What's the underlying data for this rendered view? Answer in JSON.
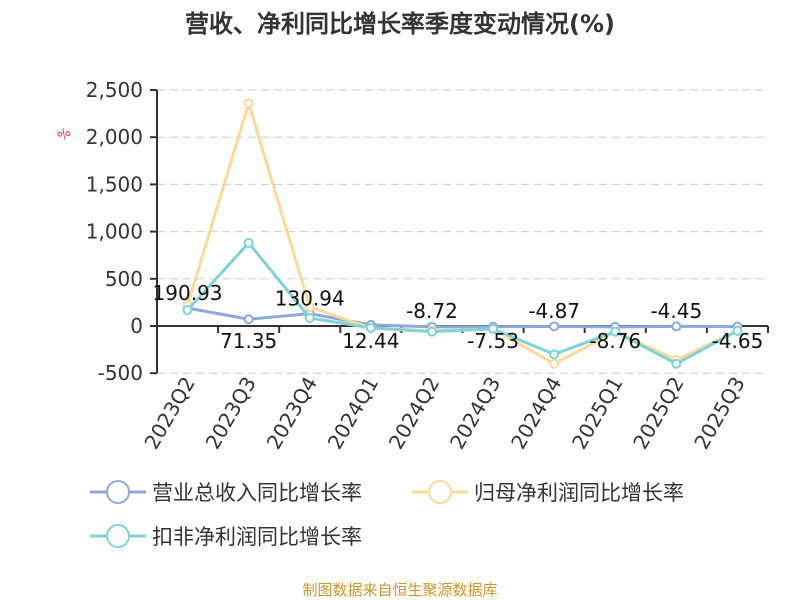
{
  "chart_data": {
    "type": "line",
    "title": "营收、净利同比增长率季度变动情况(%)",
    "categories": [
      "2023Q2",
      "2023Q3",
      "2023Q4",
      "2024Q1",
      "2024Q2",
      "2024Q3",
      "2024Q4",
      "2025Q1",
      "2025Q2",
      "2025Q3"
    ],
    "ylim": [
      -500,
      2500
    ],
    "yticks": [
      -500,
      0,
      500,
      1000,
      1500,
      2000,
      2500
    ],
    "ytick_labels": [
      "-500",
      "0",
      "500",
      "1,000",
      "1,500",
      "2,000",
      "2,500"
    ],
    "grid": true,
    "legend_placement": "bottom",
    "series": [
      {
        "name": "营业总收入同比增长率",
        "color": "#8fa8dc",
        "values": [
          190.93,
          71.35,
          130.94,
          12.44,
          -8.72,
          -7.53,
          -4.87,
          -8.76,
          -4.45,
          -4.65
        ],
        "labels": [
          "190.93",
          "71.35",
          "130.94",
          "12.44",
          "-8.72",
          "-7.53",
          "-4.87",
          "-8.76",
          "-4.45",
          "-4.65"
        ]
      },
      {
        "name": "归母净利润同比增长率",
        "color": "#fdd89a",
        "values": [
          220,
          2360,
          200,
          -20,
          -50,
          -30,
          -400,
          -60,
          -360,
          -50
        ]
      },
      {
        "name": "扣非净利润同比增长率",
        "color": "#7fd3d6",
        "values": [
          170,
          880,
          85,
          -20,
          -60,
          -30,
          -300,
          -60,
          -400,
          -50
        ]
      }
    ]
  },
  "watermark": "%",
  "source": "制图数据来自恒生聚源数据库"
}
